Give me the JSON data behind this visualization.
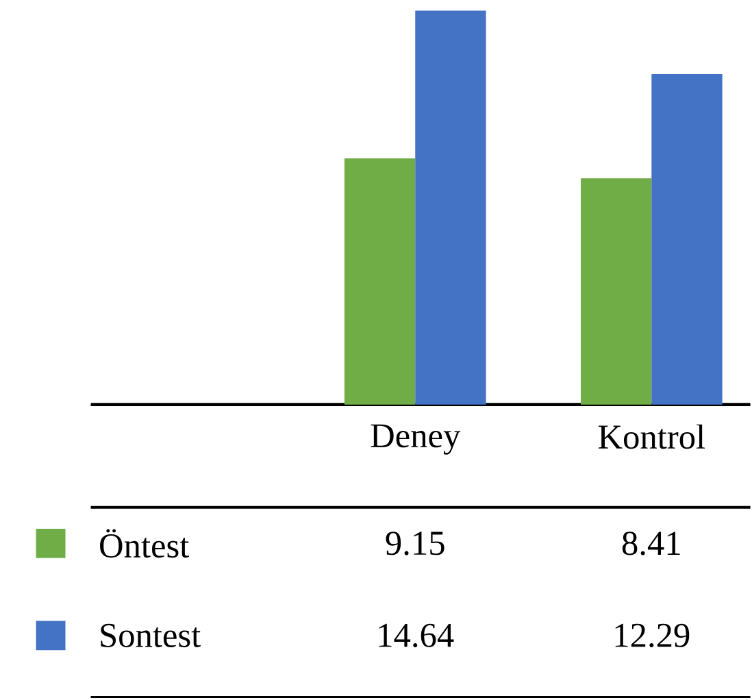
{
  "chart_data": {
    "type": "bar",
    "data_labels": true,
    "legend": "bottom left",
    "categories": [
      "Deney",
      "Kontrol"
    ],
    "series": [
      {
        "name": "Öntest",
        "color": "#70ad47",
        "values": [
          9.15,
          8.41
        ]
      },
      {
        "name": "Sontest",
        "color": "#4472c4",
        "values": [
          14.64,
          12.29
        ]
      }
    ]
  }
}
